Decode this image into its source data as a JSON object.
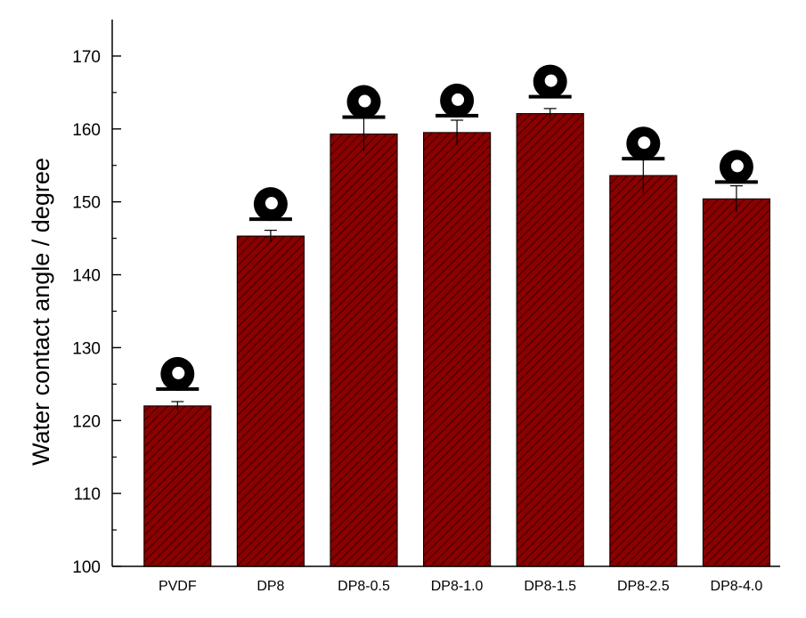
{
  "chart_data": {
    "type": "bar",
    "title": "",
    "xlabel": "",
    "ylabel": "Water contact angle / degree",
    "categories": [
      "PVDF",
      "DP8",
      "DP8-0.5",
      "DP8-1.0",
      "DP8-1.5",
      "DP8-2.5",
      "DP8-4.0"
    ],
    "values": [
      122.0,
      145.3,
      159.3,
      159.5,
      162.1,
      153.6,
      150.4
    ],
    "errors": [
      0.6,
      0.8,
      2.3,
      1.7,
      0.7,
      2.5,
      1.8
    ],
    "ylim": [
      100,
      175
    ],
    "yticks": [
      100,
      110,
      120,
      130,
      140,
      150,
      160,
      170
    ],
    "grid": false,
    "legend": "none",
    "bar_color": "#8b0000",
    "bar_hatch_color": "#3a0000",
    "bar_pattern": "diagonal-hatch",
    "inset": "water droplet photo above each bar"
  }
}
